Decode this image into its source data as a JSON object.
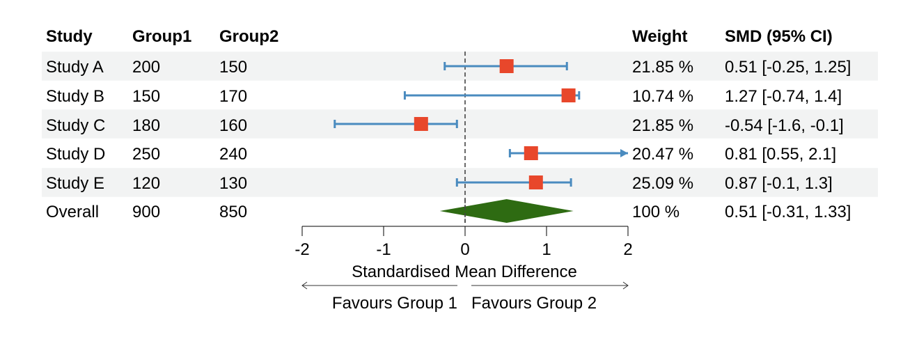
{
  "chart_data": {
    "type": "forest",
    "columns": {
      "study": "Study",
      "group1": "Group1",
      "group2": "Group2",
      "weight": "Weight",
      "smd": "SMD (95% CI)"
    },
    "rows": [
      {
        "study": "Study A",
        "group1": "200",
        "group2": "150",
        "weight": "21.85 %",
        "smd_text": "0.51 [-0.25, 1.25]",
        "est": 0.51,
        "lo": -0.25,
        "hi": 1.25,
        "clipped_hi": false
      },
      {
        "study": "Study B",
        "group1": "150",
        "group2": "170",
        "weight": "10.74 %",
        "smd_text": "1.27 [-0.74, 1.4]",
        "est": 1.27,
        "lo": -0.74,
        "hi": 1.4,
        "clipped_hi": false
      },
      {
        "study": "Study C",
        "group1": "180",
        "group2": "160",
        "weight": "21.85 %",
        "smd_text": "-0.54 [-1.6, -0.1]",
        "est": -0.54,
        "lo": -1.6,
        "hi": -0.1,
        "clipped_hi": false
      },
      {
        "study": "Study D",
        "group1": "250",
        "group2": "240",
        "weight": "20.47 %",
        "smd_text": "0.81 [0.55, 2.1]",
        "est": 0.81,
        "lo": 0.55,
        "hi": 2.1,
        "clipped_hi": true
      },
      {
        "study": "Study E",
        "group1": "120",
        "group2": "130",
        "weight": "25.09 %",
        "smd_text": "0.87 [-0.1, 1.3]",
        "est": 0.87,
        "lo": -0.1,
        "hi": 1.3,
        "clipped_hi": false
      }
    ],
    "overall": {
      "study": "Overall",
      "group1": "900",
      "group2": "850",
      "weight": "100 %",
      "smd_text": "0.51 [-0.31, 1.33]",
      "est": 0.51,
      "lo": -0.31,
      "hi": 1.33
    },
    "xlim": [
      -2,
      2
    ],
    "xticks": [
      -2,
      -1,
      0,
      1,
      2
    ],
    "xlabel": "Standardised Mean Difference",
    "favours_left": "Favours Group 1",
    "favours_right": "Favours Group 2",
    "reference_line": 0,
    "colors": {
      "box": "#e8472b",
      "ci": "#4a8bbf",
      "diamond": "#2e6b12",
      "stripe": "#f2f3f3",
      "refline": "#444444"
    }
  }
}
